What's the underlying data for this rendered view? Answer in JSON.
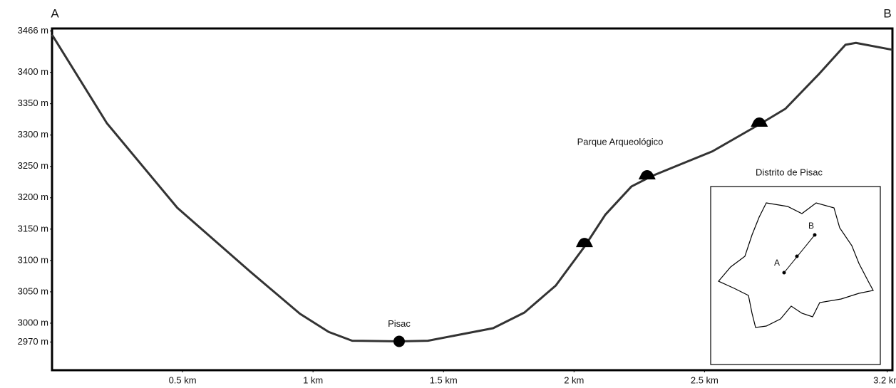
{
  "chart_data": {
    "type": "line",
    "corner_labels": [
      "A",
      "B"
    ],
    "x": [
      0,
      0.21,
      0.48,
      0.76,
      0.95,
      1.06,
      1.15,
      1.33,
      1.44,
      1.69,
      1.81,
      1.93,
      2.04,
      2.12,
      2.22,
      2.3,
      2.4,
      2.53,
      2.71,
      2.81,
      2.94,
      3.04,
      3.08,
      3.22
    ],
    "series": [
      {
        "color": "#333333",
        "values": [
          3460,
          3319,
          3184,
          3082,
          3015,
          2986,
          2972,
          2971,
          2972,
          2992,
          3017,
          3060,
          3122,
          3173,
          3218,
          3235,
          3252,
          3274,
          3317,
          3342,
          3398,
          3444,
          3447,
          3436
        ]
      }
    ],
    "xlim": [
      0,
      3.22
    ],
    "xticks": [
      {
        "value": 0.5,
        "label": "0.5 km"
      },
      {
        "value": 1,
        "label": "1 km"
      },
      {
        "value": 1.5,
        "label": "1.5 km"
      },
      {
        "value": 2,
        "label": "2 km"
      },
      {
        "value": 2.5,
        "label": "2.5 km"
      },
      {
        "value": 3.2,
        "label": "3.2 km"
      }
    ],
    "ylim": [
      2925,
      3470
    ],
    "yticks": [
      {
        "value": 2970,
        "label": "2970 m"
      },
      {
        "value": 3000,
        "label": "3000 m"
      },
      {
        "value": 3050,
        "label": "3050 m"
      },
      {
        "value": 3100,
        "label": "3100 m"
      },
      {
        "value": 3150,
        "label": "3150 m"
      },
      {
        "value": 3200,
        "label": "3200 m"
      },
      {
        "value": 3250,
        "label": "3250 m"
      },
      {
        "value": 3300,
        "label": "3300 m"
      },
      {
        "value": 3350,
        "label": "3350 m"
      },
      {
        "value": 3400,
        "label": "3400 m"
      },
      {
        "value": 3466,
        "label": "3466 m"
      }
    ],
    "town": {
      "label": "Pisac",
      "x": 1.33,
      "y": 2971
    },
    "sites_label": "Parque Arqueológico",
    "sites": [
      {
        "x": 2.04,
        "y": 3127
      },
      {
        "x": 2.28,
        "y": 3235
      },
      {
        "x": 2.71,
        "y": 3319
      }
    ],
    "inset": {
      "title": "Distrito de Pisac",
      "start": "A",
      "end": "B"
    }
  }
}
